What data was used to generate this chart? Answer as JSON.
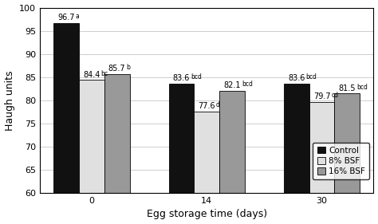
{
  "categories": [
    0,
    14,
    30
  ],
  "series": {
    "Control": [
      96.7,
      83.6,
      83.6
    ],
    "8% BSF": [
      84.4,
      77.6,
      79.7
    ],
    "16% BSF": [
      85.7,
      82.1,
      81.5
    ]
  },
  "bar_labels": {
    "Control": [
      "96.7",
      "83.6",
      "83.6"
    ],
    "8% BSF": [
      "84.4",
      "77.6",
      "79.7"
    ],
    "16% BSF": [
      "85.7",
      "82.1",
      "81.5"
    ]
  },
  "superscripts": {
    "Control": [
      "a",
      "bcd",
      "bcd"
    ],
    "8% BSF": [
      "bc",
      "d",
      "cd"
    ],
    "16% BSF": [
      "b",
      "bcd",
      "bcd"
    ]
  },
  "colors": {
    "Control": "#111111",
    "8% BSF": "#e0e0e0",
    "16% BSF": "#999999"
  },
  "ylabel": "Haugh units",
  "xlabel": "Egg storage time (days)",
  "ylim": [
    60,
    100
  ],
  "yticks": [
    60,
    65,
    70,
    75,
    80,
    85,
    90,
    95,
    100
  ],
  "bar_width": 0.22,
  "group_positions": [
    0,
    1,
    2
  ],
  "xtick_labels": [
    "0",
    "14",
    "30"
  ],
  "legend_labels": [
    "Control",
    "8% BSF",
    "16% BSF"
  ],
  "label_fontsize": 7.0,
  "axis_fontsize": 9,
  "tick_fontsize": 8
}
